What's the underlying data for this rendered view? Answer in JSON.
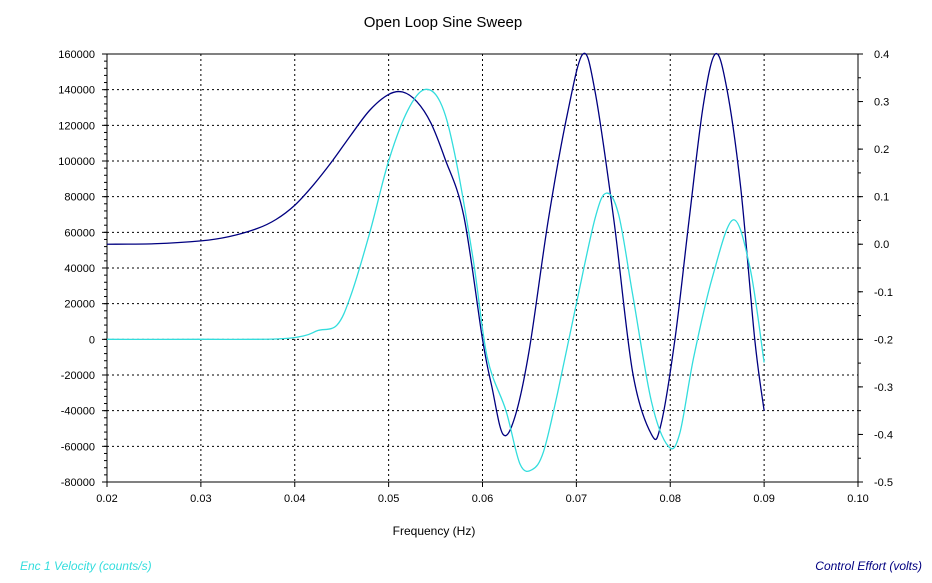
{
  "chart_data": {
    "type": "line",
    "title": "Open Loop Sine Sweep",
    "xlabel": "Frequency (Hz)",
    "xlim": [
      0.02,
      0.1
    ],
    "ylim_left": [
      -80000,
      160000
    ],
    "ylim_right": [
      -0.5,
      0.4
    ],
    "x_ticks": [
      "0.02",
      "0.03",
      "0.04",
      "0.05",
      "0.06",
      "0.07",
      "0.08",
      "0.09",
      "0.10"
    ],
    "y_left_ticks": [
      "160000",
      "140000",
      "120000",
      "100000",
      "80000",
      "60000",
      "40000",
      "20000",
      "0",
      "-20000",
      "-40000",
      "-60000",
      "-80000"
    ],
    "y_right_ticks": [
      "0.4",
      "0.3",
      "0.2",
      "0.1",
      "0.0",
      "-0.1",
      "-0.2",
      "-0.3",
      "-0.4",
      "-0.5"
    ],
    "grid": true,
    "series": [
      {
        "name": "Control Effort (volts)",
        "axis": "right",
        "color": "#000080",
        "x": [
          0.02,
          0.025,
          0.03,
          0.033,
          0.036,
          0.038,
          0.04,
          0.042,
          0.044,
          0.046,
          0.048,
          0.05,
          0.0515,
          0.053,
          0.0545,
          0.056,
          0.058,
          0.06,
          0.061,
          0.0622,
          0.0635,
          0.065,
          0.067,
          0.069,
          0.0707,
          0.072,
          0.074,
          0.076,
          0.078,
          0.079,
          0.0805,
          0.082,
          0.0835,
          0.0848,
          0.086,
          0.0875,
          0.089,
          0.09
        ],
        "values": [
          0.0,
          0.001,
          0.007,
          0.016,
          0.033,
          0.052,
          0.082,
          0.125,
          0.175,
          0.23,
          0.282,
          0.315,
          0.32,
          0.3,
          0.255,
          0.18,
          0.06,
          -0.2,
          -0.3,
          -0.4,
          -0.36,
          -0.22,
          0.05,
          0.27,
          0.4,
          0.32,
          0.05,
          -0.27,
          -0.4,
          -0.38,
          -0.2,
          0.05,
          0.29,
          0.4,
          0.33,
          0.12,
          -0.2,
          -0.35
        ]
      },
      {
        "name": "Enc 1 Velocity (counts/s)",
        "axis": "left",
        "color": "#33dddd",
        "x": [
          0.02,
          0.03,
          0.038,
          0.041,
          0.0425,
          0.0445,
          0.046,
          0.048,
          0.05,
          0.052,
          0.0538,
          0.0555,
          0.057,
          0.059,
          0.0605,
          0.0625,
          0.064,
          0.0653,
          0.0665,
          0.068,
          0.07,
          0.072,
          0.0732,
          0.0745,
          0.076,
          0.078,
          0.0798,
          0.081,
          0.0825,
          0.0845,
          0.0867,
          0.0885,
          0.09
        ],
        "values": [
          0,
          0,
          200,
          2000,
          5000,
          8000,
          25000,
          60000,
          100000,
          128000,
          140000,
          133000,
          105000,
          45000,
          -10000,
          -40000,
          -70000,
          -73000,
          -63000,
          -30000,
          20000,
          68000,
          82000,
          70000,
          25000,
          -35000,
          -60000,
          -53000,
          -10000,
          35000,
          67000,
          40000,
          -13000
        ]
      }
    ]
  },
  "legend": {
    "left_label": "Enc 1 Velocity (counts/s)",
    "right_label": "Control Effort (volts)",
    "left_color": "#33dddd",
    "right_color": "#000080"
  }
}
